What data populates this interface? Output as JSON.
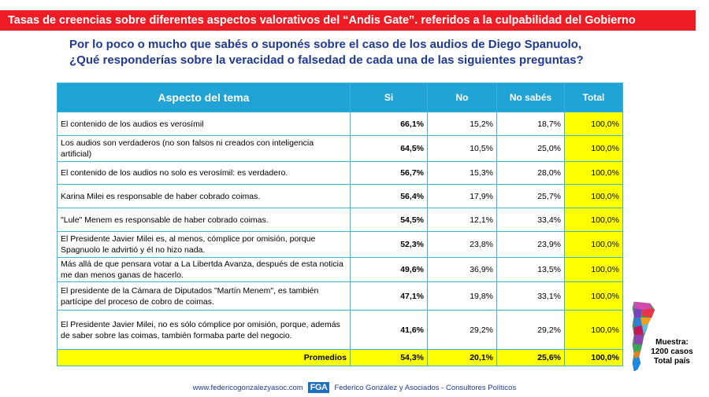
{
  "banner": "Tasas de creencias sobre diferentes aspectos valorativos del “Andis Gate”. referidos a la culpabilidad del Gobierno",
  "question": {
    "line1": "Por lo poco o mucho que sabés o suponés sobre el caso de los audios de Diego Spanuolo,",
    "line2": "¿Qué responderías sobre la veracidad o falsedad de cada una de las siguientes preguntas?"
  },
  "table": {
    "headers": [
      "Aspecto del tema",
      "Si",
      "No",
      "No sabés",
      "Total"
    ],
    "rows": [
      {
        "aspect": "El contenido de los audios es verosímil",
        "si": "66,1%",
        "no": "15,2%",
        "ns": "18,7%",
        "total": "100,0%"
      },
      {
        "aspect": "Los audios son verdaderos (no son falsos ni creados con inteligencia artificial)",
        "si": "64,5%",
        "no": "10,5%",
        "ns": "25,0%",
        "total": "100,0%"
      },
      {
        "aspect": "El contenido de los audios no solo es verosímil: es verdadero.",
        "si": "56,7%",
        "no": "15,3%",
        "ns": "28,0%",
        "total": "100,0%"
      },
      {
        "aspect": "Karina Milei es responsable de haber cobrado coimas.",
        "si": "56,4%",
        "no": "17,9%",
        "ns": "25,7%",
        "total": "100,0%"
      },
      {
        "aspect": "\"Lule\" Menem es responsable de haber cobrado coimas.",
        "si": "54,5%",
        "no": "12,1%",
        "ns": "33,4%",
        "total": "100,0%"
      },
      {
        "aspect": "El Presidente Javier Milei es, al menos, cómplice por omisión, porque Spagnuolo le advirtió y él no hizo nada.",
        "si": "52,3%",
        "no": "23,8%",
        "ns": "23,9%",
        "total": "100,0%"
      },
      {
        "aspect": "Más allá de que pensara votar a La Libertda Avanza, después de esta noticia me dan menos ganas de hacerlo.",
        "si": "49,6%",
        "no": "36,9%",
        "ns": "13,5%",
        "total": "100,0%"
      },
      {
        "aspect": "El presidente de la Cámara de Diputados \"Martín Menem\", es también partícipe del proceso de cobro de coimas.",
        "si": "47,1%",
        "no": "19,8%",
        "ns": "33,1%",
        "total": "100,0%"
      },
      {
        "aspect": "El Presidente Javier Milei, no es sólo cómplice por omisión, porque, además de saber sobre las coimas, también formaba parte del negocio.",
        "si": "41,6%",
        "no": "29,2%",
        "ns": "29,2%",
        "total": "100,0%"
      }
    ],
    "promedios": {
      "label": "Promedios",
      "si": "54,3%",
      "no": "20,1%",
      "ns": "25,6%",
      "total": "100,0%"
    }
  },
  "sample": {
    "line1": "Muestra:",
    "line2": "1200 casos",
    "line3": "Total país"
  },
  "footer": {
    "url": "www.federicogonzalezyasoc.com",
    "logo": "FGA",
    "company": "Federico González y Asociados - Consultores Políticos"
  },
  "colors": {
    "banner": "#ee1c24",
    "header": "#21a3d6",
    "highlight": "#ffff00",
    "si_text": "#e8141c",
    "question": "#1f3a93"
  }
}
